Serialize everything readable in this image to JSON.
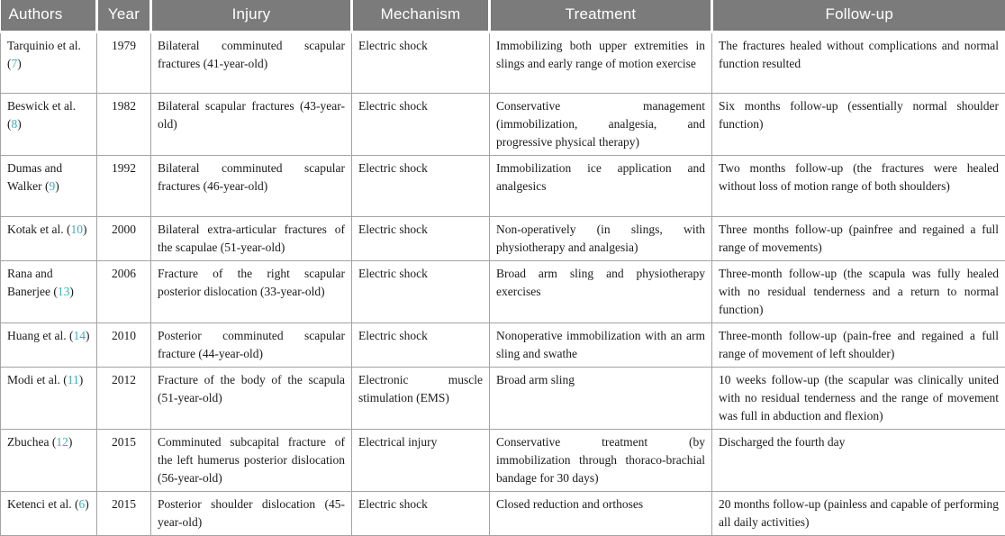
{
  "colors": {
    "header_background": "#7b7b7b",
    "header_text": "#ffffff",
    "body_text": "#1b1b1b",
    "cell_border": "#a3a3a3",
    "citation_accent": "#3baebc"
  },
  "table": {
    "citation_open": "(",
    "citation_close": ")",
    "columns": [
      {
        "label": "Authors"
      },
      {
        "label": "Year"
      },
      {
        "label": "Injury"
      },
      {
        "label": "Mechanism"
      },
      {
        "label": "Treatment"
      },
      {
        "label": "Follow-up"
      }
    ],
    "rows": [
      {
        "authors": "Tarquinio et al.",
        "ref": "7",
        "year": "1979",
        "injury": "Bilateral comminuted scapular fractures (41-year-old)",
        "mechanism": "Electric shock",
        "treatment": "Immobilizing both upper extremities in slings and early range of motion exercise",
        "followup": "The fractures healed without complications and normal function resulted"
      },
      {
        "authors": "Beswick et al.",
        "ref": "8",
        "year": "1982",
        "injury": "Bilateral scapular fractures (43-year-old)",
        "mechanism": "Electric shock",
        "treatment": "Conservative management (immobilization, analgesia, and progressive physical therapy)",
        "followup": "Six months follow-up (essentially normal shoulder function)"
      },
      {
        "authors": "Dumas and Walker",
        "ref": "9",
        "year": "1992",
        "injury": "Bilateral comminuted scapular fractures (46-year-old)",
        "mechanism": "Electric shock",
        "treatment": "Immobilization ice application and analgesics",
        "followup": "Two months follow-up (the fractures were healed without loss of motion range of both shoulders)"
      },
      {
        "authors": "Kotak et al.",
        "ref": "10",
        "year": "2000",
        "injury": "Bilateral extra-articular fractures of the scapulae (51-year-old)",
        "mechanism": "Electric shock",
        "treatment": "Non-operatively (in slings, with physiotherapy and analgesia)",
        "followup": "Three months follow-up (painfree and regained a full range of movements)"
      },
      {
        "authors": "Rana and Banerjee",
        "ref": "13",
        "year": "2006",
        "injury": "Fracture of the right scapular posterior dislocation (33-year-old)",
        "mechanism": "Electric shock",
        "treatment": "Broad arm sling and physiotherapy exercises",
        "followup": "Three-month follow-up (the scapula was fully healed with no residual tenderness and a return to normal function)"
      },
      {
        "authors": "Huang et al.",
        "ref": "14",
        "year": "2010",
        "injury": "Posterior comminuted scapular fracture (44-year-old)",
        "mechanism": "Electric shock",
        "treatment": "Nonoperative immobilization with an arm sling and swathe",
        "followup": "Three-month follow-up (pain-free and regained a full range of movement of left shoulder)"
      },
      {
        "authors": "Modi et al.",
        "ref": "11",
        "year": "2012",
        "injury": "Fracture of the body of the scapula (51-year-old)",
        "mechanism": "Electronic muscle stimulation (EMS)",
        "treatment": "Broad arm sling",
        "followup": "10 weeks follow-up (the scapular was clinically united with no residual tenderness and the range of movement was full in abduction and flexion)"
      },
      {
        "authors": "Zbuchea",
        "ref": "12",
        "year": "2015",
        "injury": "Comminuted subcapital fracture of the left humerus posterior dislocation (56-year-old)",
        "mechanism": "Electrical injury",
        "treatment": "Conservative treatment (by immobilization through thoraco-brachial bandage for 30 days)",
        "followup": "Discharged the fourth day"
      },
      {
        "authors": "Ketenci et al.",
        "ref": "6",
        "year": "2015",
        "injury": "Posterior shoulder dislocation (45-year-old)",
        "mechanism": "Electric shock",
        "treatment": "Closed reduction and orthoses",
        "followup": "20 months follow-up (painless and capable of performing all daily activities)"
      }
    ]
  }
}
